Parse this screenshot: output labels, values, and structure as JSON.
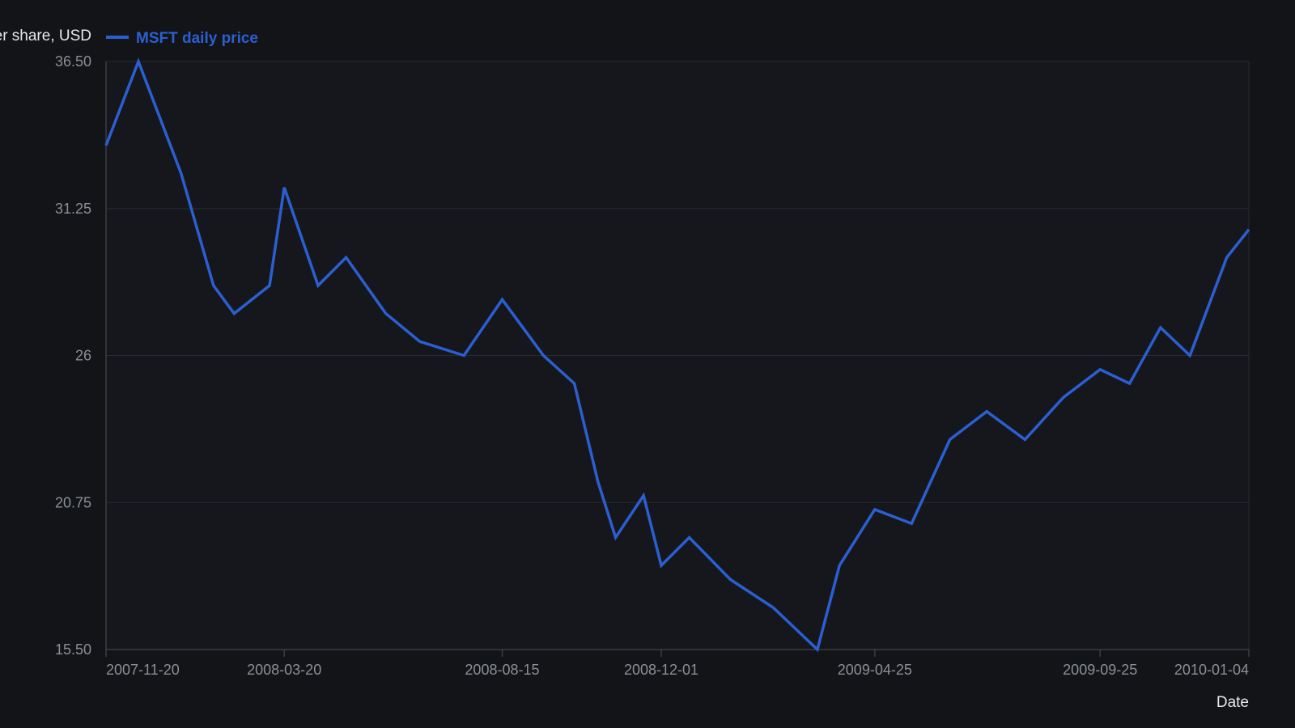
{
  "chart_data": {
    "type": "line",
    "title": "",
    "xlabel": "Date",
    "ylabel": "er share, USD",
    "x_scale": "time",
    "xlim": [
      "2007-11-20",
      "2010-01-04"
    ],
    "ylim": [
      15.5,
      36.5
    ],
    "y_ticks": [
      "15.50",
      "20.75",
      "26",
      "31.25",
      "36.50"
    ],
    "x_ticks": [
      "2007-11-20",
      "2008-03-20",
      "2008-08-15",
      "2008-12-01",
      "2009-04-25",
      "2009-09-25",
      "2010-01-04"
    ],
    "grid": "horizontal",
    "legend": "top-left",
    "series": [
      {
        "name": "MSFT daily price",
        "color": "#2b5fd1",
        "points": [
          {
            "x": "2007-11-20",
            "y": 33.5
          },
          {
            "x": "2007-12-12",
            "y": 36.5
          },
          {
            "x": "2008-01-10",
            "y": 32.5
          },
          {
            "x": "2008-02-01",
            "y": 28.5
          },
          {
            "x": "2008-02-15",
            "y": 27.5
          },
          {
            "x": "2008-03-10",
            "y": 28.5
          },
          {
            "x": "2008-03-20",
            "y": 32.0
          },
          {
            "x": "2008-04-12",
            "y": 28.5
          },
          {
            "x": "2008-05-01",
            "y": 29.5
          },
          {
            "x": "2008-05-28",
            "y": 27.5
          },
          {
            "x": "2008-06-20",
            "y": 26.5
          },
          {
            "x": "2008-07-20",
            "y": 26.0
          },
          {
            "x": "2008-08-15",
            "y": 28.0
          },
          {
            "x": "2008-09-12",
            "y": 26.0
          },
          {
            "x": "2008-10-03",
            "y": 25.0
          },
          {
            "x": "2008-10-19",
            "y": 21.5
          },
          {
            "x": "2008-10-31",
            "y": 19.5
          },
          {
            "x": "2008-11-19",
            "y": 21.0
          },
          {
            "x": "2008-12-01",
            "y": 18.5
          },
          {
            "x": "2008-12-20",
            "y": 19.5
          },
          {
            "x": "2009-01-17",
            "y": 18.0
          },
          {
            "x": "2009-02-15",
            "y": 17.0
          },
          {
            "x": "2009-03-17",
            "y": 15.5
          },
          {
            "x": "2009-04-01",
            "y": 18.5
          },
          {
            "x": "2009-04-25",
            "y": 20.5
          },
          {
            "x": "2009-05-20",
            "y": 20.0
          },
          {
            "x": "2009-06-15",
            "y": 23.0
          },
          {
            "x": "2009-07-10",
            "y": 24.0
          },
          {
            "x": "2009-08-05",
            "y": 23.0
          },
          {
            "x": "2009-08-31",
            "y": 24.5
          },
          {
            "x": "2009-09-25",
            "y": 25.5
          },
          {
            "x": "2009-10-15",
            "y": 25.0
          },
          {
            "x": "2009-11-05",
            "y": 27.0
          },
          {
            "x": "2009-11-25",
            "y": 26.0
          },
          {
            "x": "2009-12-20",
            "y": 29.5
          },
          {
            "x": "2010-01-04",
            "y": 30.5
          }
        ]
      }
    ]
  },
  "colors": {
    "background": "#121418",
    "plot_background": "#15171c",
    "grid": "#262a31",
    "axis_line": "#3a3e45",
    "tick_text": "#8b8f96",
    "label_text": "#e6e8eb",
    "series": "#2b5fd1"
  }
}
